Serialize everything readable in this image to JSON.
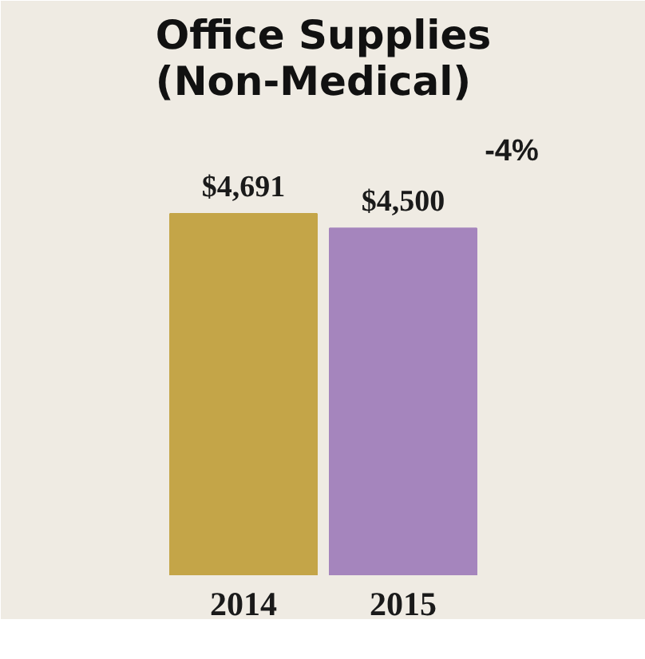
{
  "chart_data": {
    "type": "bar",
    "title": "Office Supplies\n(Non-Medical)",
    "categories": [
      "2014",
      "2015"
    ],
    "values": [
      4691,
      4500
    ],
    "colors": [
      "#c4a548",
      "#a585bd"
    ],
    "value_labels": [
      "$4,691",
      "$4,500"
    ],
    "annotations": [
      "-4%"
    ],
    "grid": false
  }
}
